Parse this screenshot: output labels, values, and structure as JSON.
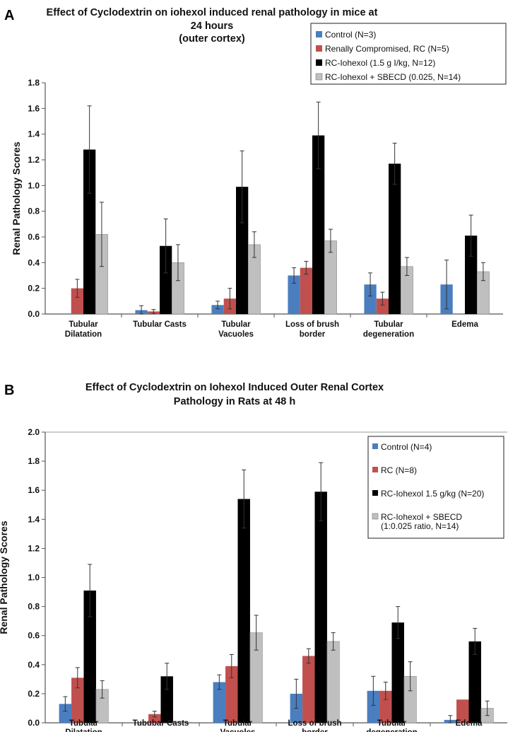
{
  "chart_data": [
    {
      "panel": "A",
      "type": "bar",
      "title": [
        "Effect of Cyclodextrin on iohexol induced renal pathology in mice at",
        "24 hours",
        "(outer cortex)"
      ],
      "xlabel": "",
      "ylabel": "Renal Pathology Scores",
      "ylim": [
        0,
        1.8
      ],
      "yticks": [
        "0.0",
        "0.2",
        "0.4",
        "0.6",
        "0.8",
        "1.0",
        "1.2",
        "1.4",
        "1.6",
        "1.8"
      ],
      "categories": [
        [
          "Tubular",
          "Dilatation"
        ],
        [
          "Tubular Casts"
        ],
        [
          "Tubular",
          "Vacuoles"
        ],
        [
          "Loss of brush",
          "border"
        ],
        [
          "Tubular",
          "degeneration"
        ],
        [
          "Edema"
        ]
      ],
      "legend_position": "top-right",
      "series": [
        {
          "name": "Control (N=3)",
          "color": "#4a7ebf",
          "values": [
            0,
            0.03,
            0.07,
            0.3,
            0.23,
            0.23
          ],
          "errors": [
            0,
            0.035,
            0.03,
            0.06,
            0.09,
            0.19
          ]
        },
        {
          "name": "Renally Compromised, RC (N=5)",
          "color": "#c0504d",
          "values": [
            0.2,
            0.02,
            0.12,
            0.36,
            0.12,
            0
          ],
          "errors": [
            0.07,
            0.015,
            0.08,
            0.05,
            0.05,
            0
          ]
        },
        {
          "name": "RC-Iohexol (1.5 g I/kg, N=12)",
          "color": "#000000",
          "values": [
            1.28,
            0.53,
            0.99,
            1.39,
            1.17,
            0.61
          ],
          "errors": [
            0.34,
            0.21,
            0.28,
            0.26,
            0.16,
            0.16
          ]
        },
        {
          "name": "RC-Iohexol + SBECD (0.025, N=14)",
          "color": "#bfbfbf",
          "values": [
            0.62,
            0.4,
            0.54,
            0.57,
            0.37,
            0.33
          ],
          "errors": [
            0.25,
            0.14,
            0.1,
            0.09,
            0.07,
            0.07
          ]
        }
      ]
    },
    {
      "panel": "B",
      "type": "bar",
      "title": [
        "Effect of Cyclodextrin on Iohexol Induced Outer Renal Cortex",
        "Pathology in Rats at 48 h"
      ],
      "xlabel": "",
      "ylabel": "Renal Pathology Scores",
      "ylim": [
        0,
        2.0
      ],
      "yticks": [
        "0.0",
        "0.2",
        "0.4",
        "0.6",
        "0.8",
        "1.0",
        "1.2",
        "1.4",
        "1.6",
        "1.8",
        "2.0"
      ],
      "categories": [
        [
          "Tubular",
          "Dilatation"
        ],
        [
          "Tububar Casts"
        ],
        [
          "Tubular",
          "Vacuoles"
        ],
        [
          "Loss of brush",
          "border"
        ],
        [
          "Tubular",
          "degeneration"
        ],
        [
          "Edema"
        ]
      ],
      "legend_position": "top-right",
      "series": [
        {
          "name": [
            "Control (N=4)"
          ],
          "color": "#4a7ebf",
          "values": [
            0.13,
            0,
            0.28,
            0.2,
            0.22,
            0.02
          ],
          "errors": [
            0.05,
            0,
            0.05,
            0.1,
            0.1,
            0.03
          ]
        },
        {
          "name": [
            "RC (N=8)"
          ],
          "color": "#c0504d",
          "values": [
            0.31,
            0.06,
            0.39,
            0.46,
            0.22,
            0.16
          ],
          "errors": [
            0.07,
            0.02,
            0.08,
            0.05,
            0.06,
            0
          ]
        },
        {
          "name": [
            "RC-Iohexol 1.5 g/kg (N=20)"
          ],
          "color": "#000000",
          "values": [
            0.91,
            0.32,
            1.54,
            1.59,
            0.69,
            0.56
          ],
          "errors": [
            0.18,
            0.09,
            0.2,
            0.2,
            0.11,
            0.09
          ]
        },
        {
          "name": [
            "RC-Iohexol + SBECD",
            "(1:0.025 ratio, N=14)"
          ],
          "color": "#bfbfbf",
          "values": [
            0.23,
            0.01,
            0.62,
            0.56,
            0.32,
            0.1
          ],
          "errors": [
            0.06,
            0,
            0.12,
            0.06,
            0.1,
            0.05
          ]
        }
      ]
    }
  ]
}
